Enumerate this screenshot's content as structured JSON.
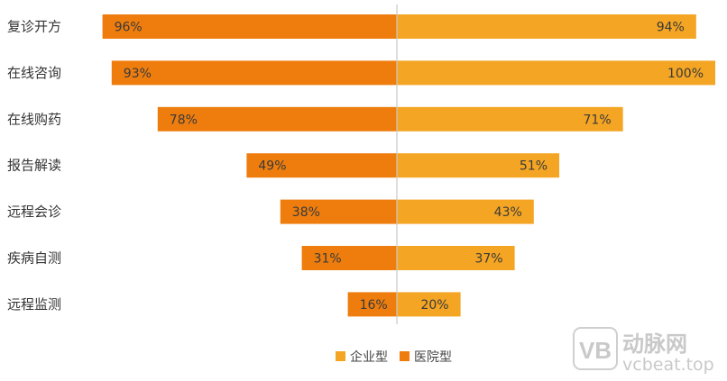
{
  "chart_data": {
    "type": "bar",
    "orientation": "horizontal-diverging",
    "categories": [
      "复诊开方",
      "在线咨询",
      "在线购药",
      "报告解读",
      "远程会诊",
      "疾病自测",
      "远程监测"
    ],
    "series": [
      {
        "name": "医院型",
        "values": [
          96,
          93,
          78,
          49,
          38,
          31,
          16
        ],
        "labels": [
          "96%",
          "93%",
          "78%",
          "49%",
          "38%",
          "31%",
          "16%"
        ],
        "color": "#ee7d0e",
        "side": "left"
      },
      {
        "name": "企业型",
        "values": [
          94,
          100,
          71,
          51,
          43,
          37,
          20
        ],
        "labels": [
          "94%",
          "100%",
          "71%",
          "51%",
          "43%",
          "37%",
          "20%"
        ],
        "color": "#f4a523",
        "side": "right"
      }
    ],
    "xlim": [
      0,
      100
    ],
    "unit": "%",
    "grid": false,
    "legend_position": "bottom-center",
    "legend_order": [
      "企业型",
      "医院型"
    ],
    "center_line_color": "#c8c8c8"
  },
  "watermark": {
    "logo_text": "VB",
    "brand_text": "动脉网",
    "url_text": "vcbeat.top"
  }
}
